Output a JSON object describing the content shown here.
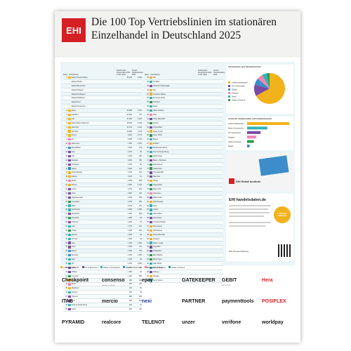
{
  "header": {
    "logo": "EHI",
    "title_line1": "Die 100 Top Vertriebslinien im stationären",
    "title_line2": "Einzelhandel in Deutschland 2025"
  },
  "table": {
    "col_rank": "Rang",
    "col_name": "Vertriebslinie",
    "col_revenue": "Nettoumsatz Deutschland 2024 in Mio. EUR",
    "col_stores": "Anzahl Verkaufsstellen 2024",
    "rows_left": [
      {
        "rank": "1",
        "name": "Edeka (Supermärkte)",
        "rev": "36.128",
        "stores": "5.840",
        "color": "#f2b21c"
      },
      {
        "rank": "",
        "name": "Edeka Minden",
        "rev": "",
        "stores": "",
        "color": ""
      },
      {
        "rank": "",
        "name": "Edeka Rhein-Ruhr",
        "rev": "",
        "stores": "",
        "color": ""
      },
      {
        "rank": "",
        "name": "Edeka Südwest",
        "rev": "",
        "stores": "",
        "color": ""
      },
      {
        "rank": "",
        "name": "Edeka Nordbayern",
        "rev": "",
        "stores": "",
        "color": ""
      },
      {
        "rank": "",
        "name": "Edeka Südbayern",
        "rev": "",
        "stores": "",
        "color": ""
      },
      {
        "rank": "",
        "name": "Edeka Nord",
        "rev": "",
        "stores": "",
        "color": ""
      },
      {
        "rank": "",
        "name": "Edeka Hessenring",
        "rev": "",
        "stores": "",
        "color": ""
      },
      {
        "rank": "2",
        "name": "Rewe",
        "rev": "30.808",
        "stores": "3.676",
        "color": "#f2b21c"
      },
      {
        "rank": "3",
        "name": "Kaufland",
        "rev": "22.560",
        "stores": "770",
        "color": "#f2b21c"
      },
      {
        "rank": "4",
        "name": "Lidl",
        "rev": "21.250",
        "stores": "3.260",
        "color": "#f2b21c"
      },
      {
        "rank": "5",
        "name": "Netto Marken-Discount",
        "rev": "15.360",
        "stores": "4.349",
        "color": "#f2b21c"
      },
      {
        "rank": "6",
        "name": "Aldi Nord",
        "rev": "14.470",
        "stores": "2.193",
        "color": "#f2b21c"
      },
      {
        "rank": "7",
        "name": "Aldi Süd",
        "rev": "13.890",
        "stores": "2.014",
        "color": "#f2b21c"
      },
      {
        "rank": "8",
        "name": "Penny",
        "rev": "9.400",
        "stores": "2.170",
        "color": "#f2b21c"
      },
      {
        "rank": "9",
        "name": "dm",
        "rev": "9.050",
        "stores": "2.100",
        "color": "#f285b4"
      },
      {
        "rank": "10",
        "name": "Rossmann",
        "rev": "7.250",
        "stores": "2.270",
        "color": "#f285b4"
      },
      {
        "rank": "11",
        "name": "MediaMarkt",
        "rev": "6.520",
        "stores": "272",
        "color": "#3c8dc9"
      },
      {
        "rank": "12",
        "name": "Ikea",
        "rev": "4.910",
        "stores": "56",
        "color": "#7b4aa3"
      },
      {
        "rank": "13",
        "name": "Obi",
        "rev": "4.600",
        "stores": "350",
        "color": "#7b4aa3"
      },
      {
        "rank": "14",
        "name": "Bauhaus",
        "rev": "3.900",
        "stores": "150",
        "color": "#7b4aa3"
      },
      {
        "rank": "15",
        "name": "Hornbach",
        "rev": "3.700",
        "stores": "98",
        "color": "#7b4aa3"
      },
      {
        "rank": "16",
        "name": "Saturn",
        "rev": "3.300",
        "stores": "113",
        "color": "#3c8dc9"
      },
      {
        "rank": "17",
        "name": "Netto (Dansk)",
        "rev": "3.150",
        "stores": "343",
        "color": "#f2b21c"
      },
      {
        "rank": "18",
        "name": "Globus",
        "rev": "3.100",
        "stores": "61",
        "color": "#f2b21c"
      },
      {
        "rank": "19",
        "name": "Müller",
        "rev": "2.950",
        "stores": "565",
        "color": "#f285b4"
      },
      {
        "rank": "20",
        "name": "Norma",
        "rev": "2.850",
        "stores": "1.230",
        "color": "#f2b21c"
      },
      {
        "rank": "21",
        "name": "Action",
        "rev": "2.700",
        "stores": "600",
        "color": "#7b4aa3"
      },
      {
        "rank": "22",
        "name": "Toom",
        "rev": "2.600",
        "stores": "320",
        "color": "#7b4aa3"
      },
      {
        "rank": "23",
        "name": "Hagebaumarkt",
        "rev": "2.400",
        "stores": "335",
        "color": "#7b4aa3"
      },
      {
        "rank": "24",
        "name": "Fressnapf",
        "rev": "2.150",
        "stores": "960",
        "color": "#2c9a50"
      },
      {
        "rank": "25",
        "name": "H&M",
        "rev": "2.100",
        "stores": "370",
        "color": "#33b3b3"
      },
      {
        "rank": "26",
        "name": "Deichmann",
        "rev": "2.000",
        "stores": "1.380",
        "color": "#33b3b3"
      },
      {
        "rank": "27",
        "name": "Woolworth",
        "rev": "1.900",
        "stores": "660",
        "color": "#7b4aa3"
      },
      {
        "rank": "28",
        "name": "Decathlon",
        "rev": "1.850",
        "stores": "92",
        "color": "#2c9a50"
      },
      {
        "rank": "29",
        "name": "XXXLutz",
        "rev": "1.800",
        "stores": "60",
        "color": "#7b4aa3"
      },
      {
        "rank": "30",
        "name": "C&A",
        "rev": "1.750",
        "stores": "410",
        "color": "#33b3b3"
      },
      {
        "rank": "31",
        "name": "Thalia",
        "rev": "1.600",
        "stores": "360",
        "color": "#2c9a50"
      },
      {
        "rank": "32",
        "name": "Galeria",
        "rev": "1.500",
        "stores": "83",
        "color": "#33b3b3"
      },
      {
        "rank": "33",
        "name": "Primark",
        "rev": "1.450",
        "stores": "31",
        "color": "#33b3b3"
      },
      {
        "rank": "34",
        "name": "Tedi",
        "rev": "1.400",
        "stores": "1.900",
        "color": "#7b4aa3"
      },
      {
        "rank": "35",
        "name": "Poco",
        "rev": "1.350",
        "stores": "125",
        "color": "#7b4aa3"
      },
      {
        "rank": "36",
        "name": "Expert",
        "rev": "1.300",
        "stores": "230",
        "color": "#3c8dc9"
      },
      {
        "rank": "37",
        "name": "Euronics",
        "rev": "1.250",
        "stores": "1.050",
        "color": "#3c8dc9"
      },
      {
        "rank": "38",
        "name": "Zara",
        "rev": "1.200",
        "stores": "66",
        "color": "#33b3b3"
      },
      {
        "rank": "39",
        "name": "Kik",
        "rev": "1.150",
        "stores": "2.500",
        "color": "#33b3b3"
      },
      {
        "rank": "40",
        "name": "Roller",
        "rev": "1.100",
        "stores": "140",
        "color": "#7b4aa3"
      },
      {
        "rank": "41",
        "name": "Höffner",
        "rev": "1.050",
        "stores": "24",
        "color": "#7b4aa3"
      },
      {
        "rank": "42",
        "name": "Intersport",
        "rev": "1.000",
        "stores": "850",
        "color": "#2c9a50"
      },
      {
        "rank": "43",
        "name": "Tegut",
        "rev": "980",
        "stores": "340",
        "color": "#f2b21c"
      },
      {
        "rank": "44",
        "name": "Budni",
        "rev": "950",
        "stores": "190",
        "color": "#f285b4"
      },
      {
        "rank": "45",
        "name": "Marktkauf",
        "rev": "930",
        "stores": "80",
        "color": "#f2b21c"
      },
      {
        "rank": "46",
        "name": "Kaufhof",
        "rev": "900",
        "stores": "40",
        "color": "#33b3b3"
      },
      {
        "rank": "47",
        "name": "Hammer",
        "rev": "880",
        "stores": "150",
        "color": "#7b4aa3"
      },
      {
        "rank": "48",
        "name": "Jysk",
        "rev": "860",
        "stores": "100",
        "color": "#7b4aa3"
      },
      {
        "rank": "49",
        "name": "Peek & Cloppenburg",
        "rev": "840",
        "stores": "67",
        "color": "#33b3b3"
      },
      {
        "rank": "50",
        "name": "Depot",
        "rev": "820",
        "stores": "400",
        "color": "#7b4aa3"
      }
    ],
    "rows_right": [
      {
        "rank": "51",
        "name": "Lidl",
        "rev": "",
        "stores": "",
        "color": "#f2b21c"
      },
      {
        "rank": "52",
        "name": "TK Maxx",
        "rev": "",
        "stores": "",
        "color": "#33b3b3"
      },
      {
        "rank": "53",
        "name": "Dänisches Bettenlager",
        "rev": "",
        "stores": "",
        "color": "#7b4aa3"
      },
      {
        "rank": "54",
        "name": "Sky",
        "rev": "",
        "stores": "",
        "color": "#f2b21c"
      },
      {
        "rank": "55",
        "name": "Schmidt's Märkte",
        "rev": "",
        "stores": "",
        "color": "#f2b21c"
      },
      {
        "rank": "56",
        "name": "Ernsting's family",
        "rev": "",
        "stores": "",
        "color": "#33b3b3"
      },
      {
        "rank": "57",
        "name": "Fielmann",
        "rev": "",
        "stores": "",
        "color": "#2c9a50"
      },
      {
        "rank": "58",
        "name": "Esprit",
        "rev": "",
        "stores": "",
        "color": "#33b3b3"
      },
      {
        "rank": "59",
        "name": "Takko Fashion",
        "rev": "",
        "stores": "",
        "color": "#33b3b3"
      },
      {
        "rank": "60",
        "name": "Ross",
        "rev": "",
        "stores": "",
        "color": "#f285b4"
      },
      {
        "rank": "61",
        "name": "Otto's Baumarkt",
        "rev": "",
        "stores": "",
        "color": "#7b4aa3"
      },
      {
        "rank": "62",
        "name": "Dehner",
        "rev": "",
        "stores": "",
        "color": "#2c9a50"
      },
      {
        "rank": "63",
        "name": "Porta Möbel",
        "rev": "",
        "stores": "",
        "color": "#7b4aa3"
      },
      {
        "rank": "64",
        "name": "Rewe Center",
        "rev": "",
        "stores": "",
        "color": "#f2b21c"
      },
      {
        "rank": "65",
        "name": "Neue Territe",
        "rev": "",
        "stores": "",
        "color": "#2c9a50"
      },
      {
        "rank": "66",
        "name": "Bonita",
        "rev": "",
        "stores": "",
        "color": "#33b3b3"
      },
      {
        "rank": "67",
        "name": "E-Markt",
        "rev": "",
        "stores": "",
        "color": "#f2b21c"
      },
      {
        "rank": "68",
        "name": "Mediamarkt Saturn",
        "rev": "",
        "stores": "",
        "color": "#3c8dc9"
      },
      {
        "rank": "69",
        "name": "Peek & Cloppenburg",
        "rev": "",
        "stores": "",
        "color": "#33b3b3"
      },
      {
        "rank": "70",
        "name": "Apollo Optik",
        "rev": "",
        "stores": "",
        "color": "#2c9a50"
      },
      {
        "rank": "71",
        "name": "Bauer + Bauhaus",
        "rev": "",
        "stores": "",
        "color": "#7b4aa3"
      },
      {
        "rank": "72",
        "name": "Sportscheck",
        "rev": "",
        "stores": "",
        "color": "#2c9a50"
      },
      {
        "rank": "73",
        "name": "Globetrotter",
        "rev": "",
        "stores": "",
        "color": "#2c9a50"
      },
      {
        "rank": "74",
        "name": "Pfennigpfeiffer",
        "rev": "",
        "stores": "",
        "color": "#7b4aa3"
      },
      {
        "rank": "75",
        "name": "Mäc-Geiz",
        "rev": "",
        "stores": "",
        "color": "#7b4aa3"
      },
      {
        "rank": "76",
        "name": "Tchibo",
        "rev": "",
        "stores": "",
        "color": "#f2b21c"
      },
      {
        "rank": "77",
        "name": "Hugendubel",
        "rev": "",
        "stores": "",
        "color": "#2c9a50"
      },
      {
        "rank": "78",
        "name": "Mayersche",
        "rev": "",
        "stores": "",
        "color": "#2c9a50"
      },
      {
        "rank": "79",
        "name": "Rossmann",
        "rev": "",
        "stores": "",
        "color": "#f285b4"
      },
      {
        "rank": "80",
        "name": "Möbel Kraft",
        "rev": "",
        "stores": "",
        "color": "#7b4aa3"
      },
      {
        "rank": "81",
        "name": "Flaschenpost",
        "rev": "",
        "stores": "",
        "color": "#f2b21c"
      },
      {
        "rank": "82",
        "name": "Reno",
        "rev": "",
        "stores": "",
        "color": "#33b3b3"
      },
      {
        "rank": "83",
        "name": "Snipes",
        "rev": "",
        "stores": "",
        "color": "#33b3b3"
      },
      {
        "rank": "84",
        "name": "Ulla Popken",
        "rev": "",
        "stores": "",
        "color": "#33b3b3"
      },
      {
        "rank": "85",
        "name": "Nanu-Nana",
        "rev": "",
        "stores": "",
        "color": "#7b4aa3"
      },
      {
        "rank": "86",
        "name": "Thomas Philipps",
        "rev": "",
        "stores": "",
        "color": "#7b4aa3"
      },
      {
        "rank": "87",
        "name": "Wreesmann",
        "rev": "",
        "stores": "",
        "color": "#f2b21c"
      },
      {
        "rank": "88",
        "name": "Lidl Express",
        "rev": "",
        "stores": "",
        "color": "#f2b21c"
      },
      {
        "rank": "89",
        "name": "Denns Biomarkt",
        "rev": "",
        "stores": "",
        "color": "#f2b21c"
      },
      {
        "rank": "90",
        "name": "Alnatura",
        "rev": "",
        "stores": "",
        "color": "#f2b21c"
      },
      {
        "rank": "91",
        "name": "Mister + Lady",
        "rev": "",
        "stores": "",
        "color": "#33b3b3"
      },
      {
        "rank": "92",
        "name": "Segmüller",
        "rev": "",
        "stores": "",
        "color": "#7b4aa3"
      },
      {
        "rank": "93",
        "name": "Multipolster",
        "rev": "",
        "stores": "",
        "color": "#7b4aa3"
      },
      {
        "rank": "94",
        "name": "Bijou Brigitte",
        "rev": "",
        "stores": "",
        "color": "#2c9a50"
      },
      {
        "rank": "95",
        "name": "Mister Spex",
        "rev": "",
        "stores": "",
        "color": "#2c9a50"
      },
      {
        "rank": "96",
        "name": "Adler Mode",
        "rev": "",
        "stores": "",
        "color": "#33b3b3"
      },
      {
        "rank": "97",
        "name": "Schuh Mücke",
        "rev": "",
        "stores": "",
        "color": "#33b3b3"
      },
      {
        "rank": "98",
        "name": "Hellweg",
        "rev": "",
        "stores": "",
        "color": "#7b4aa3"
      },
      {
        "rank": "99",
        "name": "Wasgau",
        "rev": "",
        "stores": "",
        "color": "#f2b21c"
      },
      {
        "rank": "100",
        "name": "Gerry Weber",
        "rev": "",
        "stores": "",
        "color": "#33b3b3"
      }
    ]
  },
  "side": {
    "pie_title": "Umsatzanteile nach Handelsbranchen",
    "bar_title": "Anzahl der Verkaufsstellen nach Handelsbranchen",
    "retail_institute": "EHI Retail Institute",
    "portal": "EHI handelsdaten.de",
    "stamp": "1.715 Euro-Stationen",
    "footer_note": "EHI Pressemitteilung"
  },
  "pie": [
    {
      "name": "Lebensmittelhandel",
      "value": 67,
      "color": "#f2b21c"
    },
    {
      "name": "DIY & Einrichten",
      "value": 12,
      "color": "#7b4aa3"
    },
    {
      "name": "Elektro",
      "value": 7,
      "color": "#3c8dc9"
    },
    {
      "name": "Drogerie",
      "value": 6,
      "color": "#f285b4"
    },
    {
      "name": "Mode",
      "value": 5,
      "color": "#33b3b3"
    },
    {
      "name": "Hobby & Freizeit",
      "value": 3,
      "color": "#2c9a50"
    }
  ],
  "bars": [
    {
      "name": "Lebensmittelhandel",
      "value": 100,
      "color": "#f2b21c"
    },
    {
      "name": "Mode & Accessoires",
      "value": 48,
      "color": "#33b3b3"
    },
    {
      "name": "DIY & Einrichten",
      "value": 32,
      "color": "#7b4aa3"
    },
    {
      "name": "Drogerie",
      "value": 22,
      "color": "#f285b4"
    },
    {
      "name": "Hobby & Freizeit",
      "value": 16,
      "color": "#2c9a50"
    },
    {
      "name": "Elektro",
      "value": 6,
      "color": "#3c8dc9"
    }
  ],
  "legend": [
    {
      "label": "Lebensmittelhandel",
      "color": "#f2b21c"
    },
    {
      "label": "DIY & Einrichten",
      "color": "#7b4aa3"
    },
    {
      "label": "Mode & Accessoires",
      "color": "#33b3b3"
    },
    {
      "label": "Elektro & Elektronik",
      "color": "#3c8dc9"
    },
    {
      "label": "Gesundheit & Drogerie",
      "color": "#f285b4"
    },
    {
      "label": "Hobby & Freizeit",
      "color": "#2c9a50"
    }
  ],
  "sponsors": [
    {
      "label": "Checkpoint",
      "color": "#1a1a1a",
      "sub": ""
    },
    {
      "label": "consenso",
      "color": "#1a1a1a",
      "sub": "Software für Retail"
    },
    {
      "label": "epay",
      "color": "#1a1a1a",
      "sub": ""
    },
    {
      "label": "GATEKEEPER",
      "color": "#1a1a1a",
      "sub": ""
    },
    {
      "label": "GEBIT",
      "color": "#1a1a1a",
      "sub": "SOLUTIONS"
    },
    {
      "label": "Hera",
      "color": "#d41f25",
      "sub": ""
    },
    {
      "label": "ITAB",
      "color": "#1a1a1a",
      "sub": ""
    },
    {
      "label": "mercio",
      "color": "#1a1a1a",
      "sub": ""
    },
    {
      "label": "nexi",
      "color": "#1f3a93",
      "sub": ""
    },
    {
      "label": "PARTNER",
      "color": "#1a1a1a",
      "sub": ""
    },
    {
      "label": "paymenttools",
      "color": "#1a1a1a",
      "sub": ""
    },
    {
      "label": "POSIFLEX",
      "color": "#d41f25",
      "sub": ""
    },
    {
      "label": "PYRAMID",
      "color": "#1a1a1a",
      "sub": ""
    },
    {
      "label": "realcore",
      "color": "#1a1a1a",
      "sub": ""
    },
    {
      "label": "TELENOT",
      "color": "#1a1a1a",
      "sub": ""
    },
    {
      "label": "unzer",
      "color": "#1a1a1a",
      "sub": ""
    },
    {
      "label": "verifone",
      "color": "#1a1a1a",
      "sub": ""
    },
    {
      "label": "worldpay",
      "color": "#1a1a1a",
      "sub": ""
    }
  ]
}
